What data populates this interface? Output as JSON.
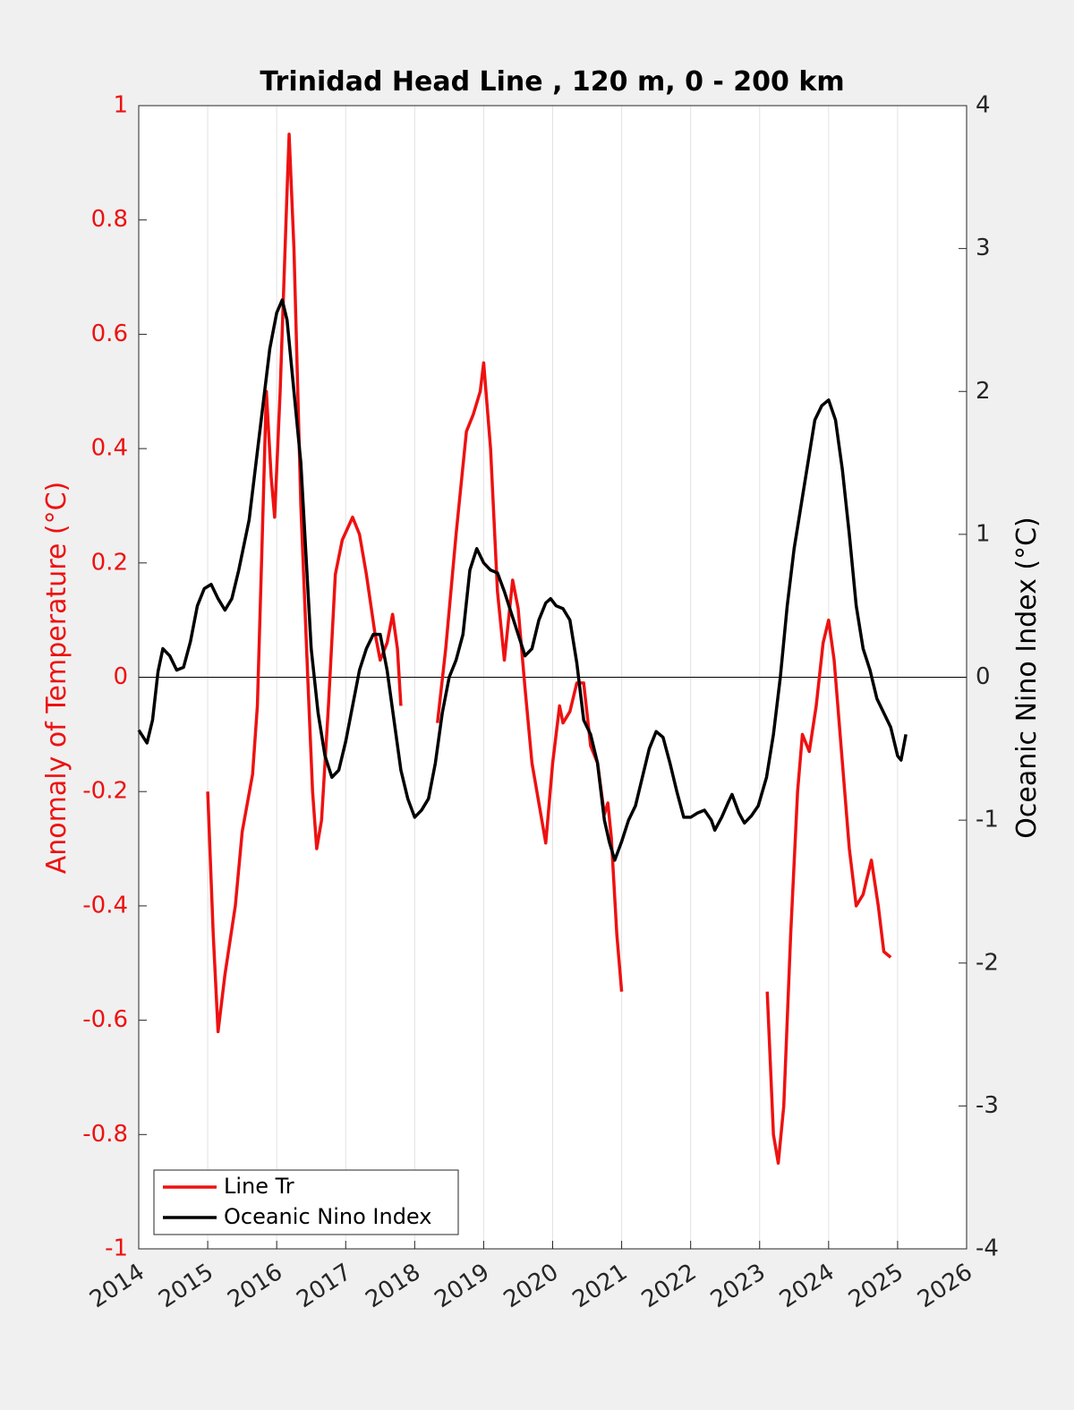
{
  "chart_data": {
    "type": "line",
    "title": "Trinidad Head Line , 120 m, 0 - 200 km",
    "ylabel": "Anomaly of Temperature (°C)",
    "y2label": "Oceanic Nino Index (°C)",
    "xlim": [
      2014,
      2026
    ],
    "xticks": [
      2014,
      2015,
      2016,
      2017,
      2018,
      2019,
      2020,
      2021,
      2022,
      2023,
      2024,
      2025,
      2026
    ],
    "ylim": [
      -1,
      1
    ],
    "yticks": [
      -1,
      -0.8,
      -0.6,
      -0.4,
      -0.2,
      0,
      0.2,
      0.4,
      0.6,
      0.8,
      1
    ],
    "y2lim": [
      -4,
      4
    ],
    "y2ticks": [
      -4,
      -3,
      -2,
      -1,
      0,
      1,
      2,
      3,
      4
    ],
    "grid": "x",
    "zero_line": true,
    "legend": "lower left",
    "series": [
      {
        "name": "Line Tr",
        "color": "#ee1111",
        "axis": "y",
        "x": [
          2015.0,
          2015.08,
          2015.15,
          2015.25,
          2015.4,
          2015.5,
          2015.65,
          2015.72,
          2015.78,
          2015.85,
          2015.92,
          2015.97,
          2016.05,
          2016.15,
          2016.18,
          2016.25,
          2016.35,
          2016.45,
          2016.52,
          2016.58,
          2016.65,
          2016.75,
          2016.85,
          2016.95,
          2017.1,
          2017.2,
          2017.3,
          2017.42,
          2017.5,
          2017.6,
          2017.68,
          2017.75,
          2017.8,
          null,
          2018.33,
          2018.45,
          2018.6,
          2018.75,
          2018.85,
          2018.95,
          2019.0,
          2019.1,
          2019.2,
          2019.3,
          2019.42,
          2019.5,
          2019.6,
          2019.7,
          2019.8,
          2019.9,
          2020.0,
          2020.1,
          2020.15,
          2020.25,
          2020.35,
          2020.45,
          2020.55,
          2020.65,
          2020.75,
          2020.8,
          2020.85,
          2020.93,
          2021.0,
          null,
          2023.11,
          2023.2,
          2023.27,
          2023.35,
          2023.45,
          2023.55,
          2023.62,
          2023.72,
          2023.82,
          2023.92,
          2024.0,
          2024.08,
          2024.2,
          2024.3,
          2024.4,
          2024.5,
          2024.62,
          2024.72,
          2024.8,
          2024.9
        ],
        "values": [
          -0.2,
          -0.45,
          -0.62,
          -0.52,
          -0.4,
          -0.27,
          -0.17,
          -0.05,
          0.2,
          0.5,
          0.35,
          0.28,
          0.5,
          0.85,
          0.95,
          0.75,
          0.3,
          0.0,
          -0.2,
          -0.3,
          -0.25,
          -0.05,
          0.18,
          0.24,
          0.28,
          0.25,
          0.18,
          0.08,
          0.03,
          0.06,
          0.11,
          0.05,
          -0.05,
          null,
          -0.08,
          0.05,
          0.25,
          0.43,
          0.46,
          0.5,
          0.55,
          0.4,
          0.15,
          0.03,
          0.17,
          0.12,
          -0.02,
          -0.15,
          -0.22,
          -0.29,
          -0.15,
          -0.05,
          -0.08,
          -0.06,
          -0.01,
          -0.01,
          -0.12,
          -0.15,
          -0.24,
          -0.22,
          -0.28,
          -0.45,
          -0.55,
          null,
          -0.55,
          -0.8,
          -0.85,
          -0.75,
          -0.45,
          -0.2,
          -0.1,
          -0.13,
          -0.05,
          0.06,
          0.1,
          0.03,
          -0.15,
          -0.3,
          -0.4,
          -0.38,
          -0.32,
          -0.4,
          -0.48,
          -0.49
        ]
      },
      {
        "name": "Oceanic Nino Index",
        "color": "#000000",
        "axis": "y2",
        "x": [
          2014.0,
          2014.12,
          2014.2,
          2014.28,
          2014.35,
          2014.45,
          2014.55,
          2014.65,
          2014.75,
          2014.85,
          2014.95,
          2015.05,
          2015.15,
          2015.25,
          2015.35,
          2015.45,
          2015.6,
          2015.7,
          2015.8,
          2015.9,
          2016.0,
          2016.08,
          2016.15,
          2016.25,
          2016.35,
          2016.5,
          2016.6,
          2016.7,
          2016.8,
          2016.9,
          2017.0,
          2017.1,
          2017.2,
          2017.3,
          2017.4,
          2017.5,
          2017.6,
          2017.7,
          2017.8,
          2017.9,
          2018.0,
          2018.1,
          2018.2,
          2018.3,
          2018.4,
          2018.5,
          2018.6,
          2018.7,
          2018.8,
          2018.9,
          2019.0,
          2019.1,
          2019.2,
          2019.3,
          2019.4,
          2019.5,
          2019.6,
          2019.7,
          2019.8,
          2019.9,
          2019.97,
          2020.05,
          2020.15,
          2020.25,
          2020.35,
          2020.45,
          2020.55,
          2020.65,
          2020.75,
          2020.82,
          2020.9,
          2021.0,
          2021.1,
          2021.2,
          2021.3,
          2021.4,
          2021.5,
          2021.6,
          2021.7,
          2021.8,
          2021.9,
          2022.0,
          2022.1,
          2022.2,
          2022.3,
          2022.35,
          2022.45,
          2022.55,
          2022.6,
          2022.7,
          2022.78,
          2022.88,
          2022.98,
          2023.1,
          2023.2,
          2023.3,
          2023.4,
          2023.5,
          2023.6,
          2023.7,
          2023.8,
          2023.9,
          2024.0,
          2024.1,
          2024.2,
          2024.3,
          2024.4,
          2024.5,
          2024.6,
          2024.7,
          2024.8,
          2024.9,
          2025.0,
          2025.05,
          2025.12
        ],
        "values": [
          -0.37,
          -0.46,
          -0.3,
          0.04,
          0.2,
          0.15,
          0.05,
          0.07,
          0.25,
          0.5,
          0.62,
          0.65,
          0.55,
          0.47,
          0.55,
          0.75,
          1.1,
          1.5,
          1.9,
          2.3,
          2.55,
          2.64,
          2.5,
          2.0,
          1.5,
          0.2,
          -0.25,
          -0.55,
          -0.7,
          -0.65,
          -0.45,
          -0.2,
          0.05,
          0.2,
          0.3,
          0.3,
          0.05,
          -0.3,
          -0.65,
          -0.85,
          -0.98,
          -0.93,
          -0.85,
          -0.6,
          -0.25,
          0.0,
          0.12,
          0.3,
          0.75,
          0.9,
          0.8,
          0.75,
          0.73,
          0.6,
          0.45,
          0.3,
          0.15,
          0.2,
          0.4,
          0.52,
          0.55,
          0.5,
          0.48,
          0.4,
          0.1,
          -0.3,
          -0.4,
          -0.6,
          -1.0,
          -1.15,
          -1.28,
          -1.15,
          -1.0,
          -0.9,
          -0.7,
          -0.5,
          -0.38,
          -0.42,
          -0.6,
          -0.8,
          -0.98,
          -0.98,
          -0.95,
          -0.93,
          -1.0,
          -1.07,
          -0.98,
          -0.87,
          -0.82,
          -0.95,
          -1.02,
          -0.97,
          -0.9,
          -0.7,
          -0.4,
          0.0,
          0.5,
          0.9,
          1.2,
          1.5,
          1.8,
          1.9,
          1.94,
          1.8,
          1.45,
          1.0,
          0.5,
          0.2,
          0.05,
          -0.15,
          -0.25,
          -0.35,
          -0.55,
          -0.58,
          -0.4
        ]
      }
    ]
  }
}
